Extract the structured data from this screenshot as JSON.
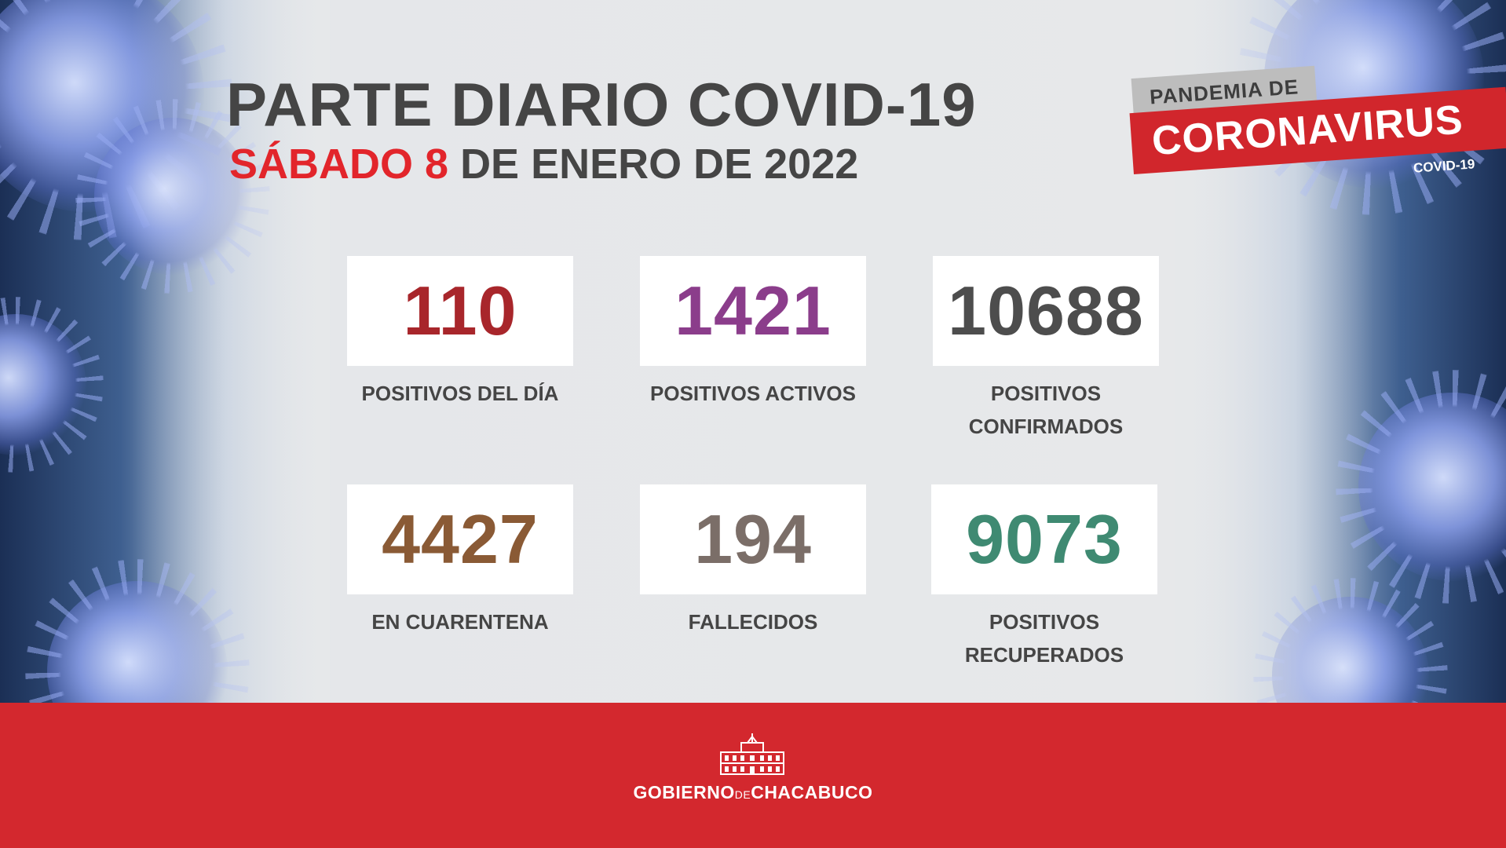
{
  "header": {
    "title": "PARTE DIARIO COVID-19",
    "date_day": "SÁBADO 8",
    "date_rest": "DE ENERO DE 2022"
  },
  "badge": {
    "top": "PANDEMIA DE",
    "main": "CORONAVIRUS",
    "sub": "COVID-19"
  },
  "stats": [
    {
      "value": "110",
      "label_line1": "POSITIVOS DEL DÍA",
      "label_line2": "",
      "color": "#a8262b"
    },
    {
      "value": "1421",
      "label_line1": "POSITIVOS ACTIVOS",
      "label_line2": "",
      "color": "#8b3d8b"
    },
    {
      "value": "10688",
      "label_line1": "POSITIVOS",
      "label_line2": "CONFIRMADOS",
      "color": "#4d4d4d"
    },
    {
      "value": "4427",
      "label_line1": "EN CUARENTENA",
      "label_line2": "",
      "color": "#8a5a35"
    },
    {
      "value": "194",
      "label_line1": "FALLECIDOS",
      "label_line2": "",
      "color": "#7b6e68"
    },
    {
      "value": "9073",
      "label_line1": "POSITIVOS",
      "label_line2": "RECUPERADOS",
      "color": "#3f8a72"
    }
  ],
  "footer": {
    "brand_a": "GOBIERNO",
    "brand_b": "DE",
    "brand_c": "CHACABUCO",
    "logo_icon": "municipal-building-icon"
  },
  "colors": {
    "accent_red": "#d3282e",
    "title_gray": "#454545"
  }
}
